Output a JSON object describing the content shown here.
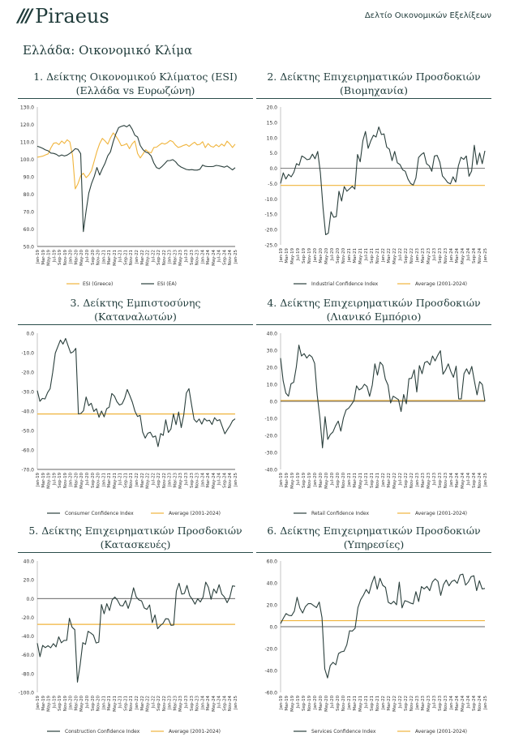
{
  "header": {
    "logo_text": "Piraeus",
    "doc_title": "Δελτίο Οικονομικών Εξελίξεων"
  },
  "section_title": "Ελλάδα: Οικονομικό Κλίμα",
  "colors": {
    "dark": "#2a3f3c",
    "gold": "#f0b43c"
  },
  "x_labels": [
    "Jan-19",
    "Mar-19",
    "May-19",
    "Jul-19",
    "Sep-19",
    "Nov-19",
    "Jan-20",
    "Mar-20",
    "May-20",
    "Jul-20",
    "Sep-20",
    "Nov-20",
    "Jan-21",
    "Mar-21",
    "May-21",
    "Jul-21",
    "Sep-21",
    "Nov-21",
    "Jan-22",
    "Mar-22",
    "May-22",
    "Jul-22",
    "Sep-22",
    "Nov-22",
    "Jan-23",
    "Mar-23",
    "May-23",
    "Jul-23",
    "Sep-23",
    "Nov-23",
    "Jan-24",
    "Mar-24",
    "May-24",
    "Jul-24",
    "Sep-24",
    "Nov-24",
    "Jan-25"
  ],
  "chart_data": [
    {
      "id": "c1",
      "type": "line",
      "title_line1": "1. Δείκτης Οικονομικού Κλίματος (ESI)",
      "title_line2": "(Ελλάδα vs Ευρωζώνη)",
      "ylim": [
        50,
        130
      ],
      "yticks": [
        50,
        60,
        70,
        80,
        90,
        100,
        110,
        120,
        130
      ],
      "ydec": 1,
      "series": [
        {
          "name": "ESI (Greece)",
          "color": "#f0b43c",
          "values": [
            101.2,
            101.5,
            101.8,
            102.5,
            103.1,
            106.5,
            109.2,
            109.5,
            108.4,
            110.5,
            109.1,
            111.2,
            110.0,
            102.2,
            83.0,
            86.0,
            90.5,
            92.0,
            89.5,
            91.0,
            93.5,
            99.0,
            104.5,
            109.0,
            112.0,
            110.5,
            108.7,
            112.3,
            115.1,
            113.3,
            110.9,
            107.8,
            108.2,
            109.0,
            106.1,
            108.9,
            110.5,
            103.3,
            100.8,
            103.1,
            105.5,
            104.2,
            103.7,
            106.8,
            107.0,
            108.2,
            109.3,
            108.7,
            109.5,
            110.8,
            110.1,
            108.1,
            106.8,
            107.3,
            108.0,
            108.5,
            107.4,
            108.7,
            109.8,
            108.3,
            108.6,
            110.1,
            106.7,
            109.0,
            107.5,
            107.0,
            108.4,
            107.2,
            108.8,
            107.6,
            110.4,
            108.9,
            106.8,
            108.7
          ]
        },
        {
          "name": "ESI (EA)",
          "color": "#2a3f3c",
          "values": [
            107.5,
            107.0,
            106.3,
            105.4,
            104.9,
            103.6,
            103.4,
            102.9,
            101.8,
            102.5,
            101.9,
            102.4,
            103.4,
            104.6,
            106.1,
            105.7,
            103.2,
            58.5,
            70.4,
            80.6,
            86.0,
            90.1,
            95.3,
            91.0,
            94.6,
            97.8,
            102.0,
            104.3,
            110.1,
            114.6,
            118.2,
            118.9,
            119.4,
            118.6,
            119.8,
            117.3,
            113.8,
            112.8,
            107.9,
            105.5,
            104.2,
            103.6,
            101.9,
            97.9,
            95.2,
            94.6,
            95.9,
            97.5,
            99.2,
            99.3,
            99.8,
            98.6,
            96.7,
            95.6,
            94.9,
            94.2,
            93.9,
            94.1,
            93.8,
            93.8,
            94.3,
            96.7,
            96.0,
            95.8,
            95.8,
            95.9,
            96.5,
            96.3,
            95.9,
            95.5,
            96.2,
            95.1,
            93.9,
            95.2
          ]
        }
      ]
    },
    {
      "id": "c2",
      "type": "line",
      "title_line1": "2. Δείκτης Επιχειρηματικών Προσδοκιών",
      "title_line2": "(Βιομηχανία)",
      "ylim": [
        -25,
        20
      ],
      "yticks": [
        -25,
        -20,
        -15,
        -10,
        -5,
        0,
        5,
        10,
        15,
        20
      ],
      "ydec": 1,
      "avg": -5.6,
      "series": [
        {
          "name": "Industrial Confidence Index",
          "color": "#2a3f3c",
          "values": [
            -5.0,
            -1.5,
            -3.5,
            -2.0,
            -2.8,
            -1.3,
            1.5,
            1.0,
            4.0,
            3.5,
            2.8,
            3.0,
            4.6,
            3.1,
            5.5,
            -1.5,
            -13.0,
            -21.7,
            -21.2,
            -14.2,
            -16.0,
            -15.8,
            -7.5,
            -10.7,
            -6.0,
            -7.5,
            -6.7,
            -5.9,
            -6.8,
            4.5,
            2.1,
            9.0,
            12.0,
            6.5,
            9.0,
            10.8,
            10.2,
            13.5,
            11.0,
            11.2,
            6.9,
            6.2,
            2.5,
            5.5,
            1.8,
            1.2,
            -0.5,
            -1.0,
            -3.5,
            -5.0,
            -5.5,
            -3.2,
            3.5,
            4.5,
            5.1,
            1.5,
            0.8,
            -1.0,
            4.0,
            4.2,
            2.0,
            -2.5,
            -3.5,
            -4.7,
            -5.1,
            -2.8,
            -4.5,
            0.8,
            3.6,
            2.9,
            4.0,
            -2.6,
            -0.9,
            7.5,
            1.2,
            5.0,
            1.5,
            5.7
          ]
        }
      ]
    },
    {
      "id": "c3",
      "type": "line",
      "title_line1": "3. Δείκτης Εμπιστοσύνης",
      "title_line2": "(Καταναλωτών)",
      "ylim": [
        -70,
        0
      ],
      "yticks": [
        -70,
        -60,
        -50,
        -40,
        -30,
        -20,
        -10,
        0
      ],
      "ydec": 1,
      "avg": -41.5,
      "series": [
        {
          "name": "Consumer Confidence Index",
          "color": "#2a3f3c",
          "values": [
            -29.5,
            -35.0,
            -33.5,
            -33.8,
            -30.5,
            -28.5,
            -20.1,
            -10.2,
            -6.8,
            -3.5,
            -5.6,
            -2.7,
            -6.5,
            -10.2,
            -9.5,
            -7.8,
            -41.5,
            -41.2,
            -39.8,
            -32.8,
            -37.2,
            -36.0,
            -40.2,
            -38.8,
            -43.2,
            -40.0,
            -43.0,
            -38.8,
            -38.0,
            -31.0,
            -32.3,
            -35.2,
            -36.9,
            -36.3,
            -33.5,
            -28.9,
            -32.1,
            -35.4,
            -40.1,
            -42.8,
            -42.2,
            -50.8,
            -53.9,
            -51.4,
            -50.9,
            -53.4,
            -52.8,
            -58.3,
            -51.6,
            -52.5,
            -44.5,
            -51.0,
            -49.2,
            -41.5,
            -47.0,
            -40.5,
            -48.5,
            -42.0,
            -30.8,
            -28.5,
            -36.4,
            -44.3,
            -45.7,
            -44.1,
            -46.7,
            -43.8,
            -45.1,
            -44.7,
            -46.9,
            -43.4,
            -45.0,
            -44.4,
            -48.1,
            -51.7,
            -49.5,
            -47.5,
            -45.0,
            -44.0
          ]
        }
      ]
    },
    {
      "id": "c4",
      "type": "line",
      "title_line1": "4. Δείκτης Επιχειρηματικών Προσδοκιών",
      "title_line2": "(Λιανικό Εμπόριο)",
      "ylim": [
        -40,
        40
      ],
      "yticks": [
        -40,
        -30,
        -20,
        -10,
        0,
        10,
        20,
        30,
        40
      ],
      "ydec": 1,
      "avg": 0.5,
      "series": [
        {
          "name": "Retail Confidence Index",
          "color": "#2a3f3c",
          "values": [
            25.4,
            12.0,
            4.8,
            3.0,
            10.3,
            11.2,
            20.1,
            33.0,
            26.6,
            28.0,
            25.4,
            27.3,
            26.0,
            22.3,
            3.7,
            -9.8,
            -27.4,
            -9.0,
            -22.4,
            -19.5,
            -18.0,
            -14.4,
            -11.6,
            -17.5,
            -9.8,
            -5.1,
            -4.0,
            -2.0,
            0.4,
            9.1,
            6.7,
            7.6,
            10.0,
            8.7,
            2.9,
            9.5,
            22.0,
            15.4,
            23.0,
            21.2,
            13.1,
            9.5,
            -1.0,
            3.0,
            2.0,
            1.0,
            -6.0,
            4.0,
            -1.5,
            13.3,
            13.5,
            18.5,
            5.5,
            21.0,
            16.2,
            22.7,
            23.5,
            21.4,
            26.6,
            23.7,
            27.0,
            29.7,
            15.9,
            18.4,
            22.0,
            17.5,
            14.1,
            20.6,
            1.4,
            1.4,
            16.2,
            19.1,
            15.9,
            20.5,
            11.7,
            3.8,
            11.5,
            9.8,
            0.0
          ]
        }
      ]
    },
    {
      "id": "c5",
      "type": "line",
      "title_line1": "5. Δείκτης Επιχειρηματικών Προσδοκιών",
      "title_line2": "(Κατασκευές)",
      "ylim": [
        -100,
        40
      ],
      "yticks": [
        -100,
        -80,
        -60,
        -40,
        -20,
        0,
        20,
        40
      ],
      "ydec": 1,
      "avg": -27.5,
      "series": [
        {
          "name": "Construction Confidence Index",
          "color": "#2a3f3c",
          "values": [
            -47.5,
            -62.0,
            -50.0,
            -52.3,
            -50.2,
            -52.5,
            -48.1,
            -51.5,
            -40.8,
            -47.2,
            -44.6,
            -44.5,
            -21.0,
            -30.6,
            -33.2,
            -89.1,
            -70.9,
            -47.0,
            -48.8,
            -34.9,
            -36.7,
            -39.0,
            -47.4,
            -46.5,
            -6.4,
            -16.3,
            -5.5,
            -12.8,
            -1.5,
            1.6,
            -1.8,
            -7.4,
            -8.0,
            -2.2,
            -10.5,
            -1.5,
            11.5,
            1.7,
            -1.5,
            -2.5,
            -10.0,
            -11.5,
            -6.8,
            -25.7,
            -17.5,
            -32.2,
            -28.8,
            -26.5,
            -21.5,
            -21.7,
            -28.5,
            -28.3,
            8.0,
            16.3,
            4.7,
            5.4,
            14.0,
            3.1,
            -0.9,
            -6.0,
            -0.3,
            -3.6,
            1.5,
            17.5,
            12.0,
            -0.8,
            10.2,
            5.7,
            14.8,
            4.7,
            1.6,
            -4.4,
            1.3,
            13.5,
            13.0
          ]
        }
      ]
    },
    {
      "id": "c6",
      "type": "line",
      "title_line1": "6. Δείκτης Επιχειρηματικών Προσδοκιών",
      "title_line2": "(Υπηρεσίες)",
      "ylim": [
        -60,
        60
      ],
      "yticks": [
        -60,
        -40,
        -20,
        0,
        20,
        40,
        60
      ],
      "ydec": 1,
      "avg": 5.5,
      "series": [
        {
          "name": "Services Confidence Index",
          "color": "#2a3f3c",
          "values": [
            2.8,
            7.7,
            12.0,
            10.3,
            10.1,
            14.2,
            26.9,
            17.0,
            12.5,
            18.4,
            21.0,
            21.0,
            19.2,
            17.5,
            22.5,
            8.2,
            -38.5,
            -46.8,
            -35.5,
            -32.6,
            -34.8,
            -24.5,
            -23.0,
            -22.4,
            -16.5,
            -3.7,
            -4.0,
            -1.5,
            17.5,
            24.7,
            28.8,
            34.0,
            30.2,
            39.4,
            46.1,
            34.3,
            44.2,
            37.8,
            35.9,
            22.3,
            20.8,
            23.2,
            20.0,
            40.7,
            17.2,
            23.8,
            23.0,
            21.6,
            20.8,
            32.0,
            23.0,
            36.6,
            34.5,
            36.8,
            32.9,
            41.0,
            43.7,
            41.4,
            28.6,
            38.4,
            42.7,
            37.3,
            41.3,
            42.6,
            39.6,
            47.3,
            48.0,
            38.0,
            40.9,
            45.7,
            46.5,
            33.0,
            42.0,
            34.5,
            35.0
          ]
        }
      ]
    }
  ],
  "avg_label": "Average (2001-2024)"
}
